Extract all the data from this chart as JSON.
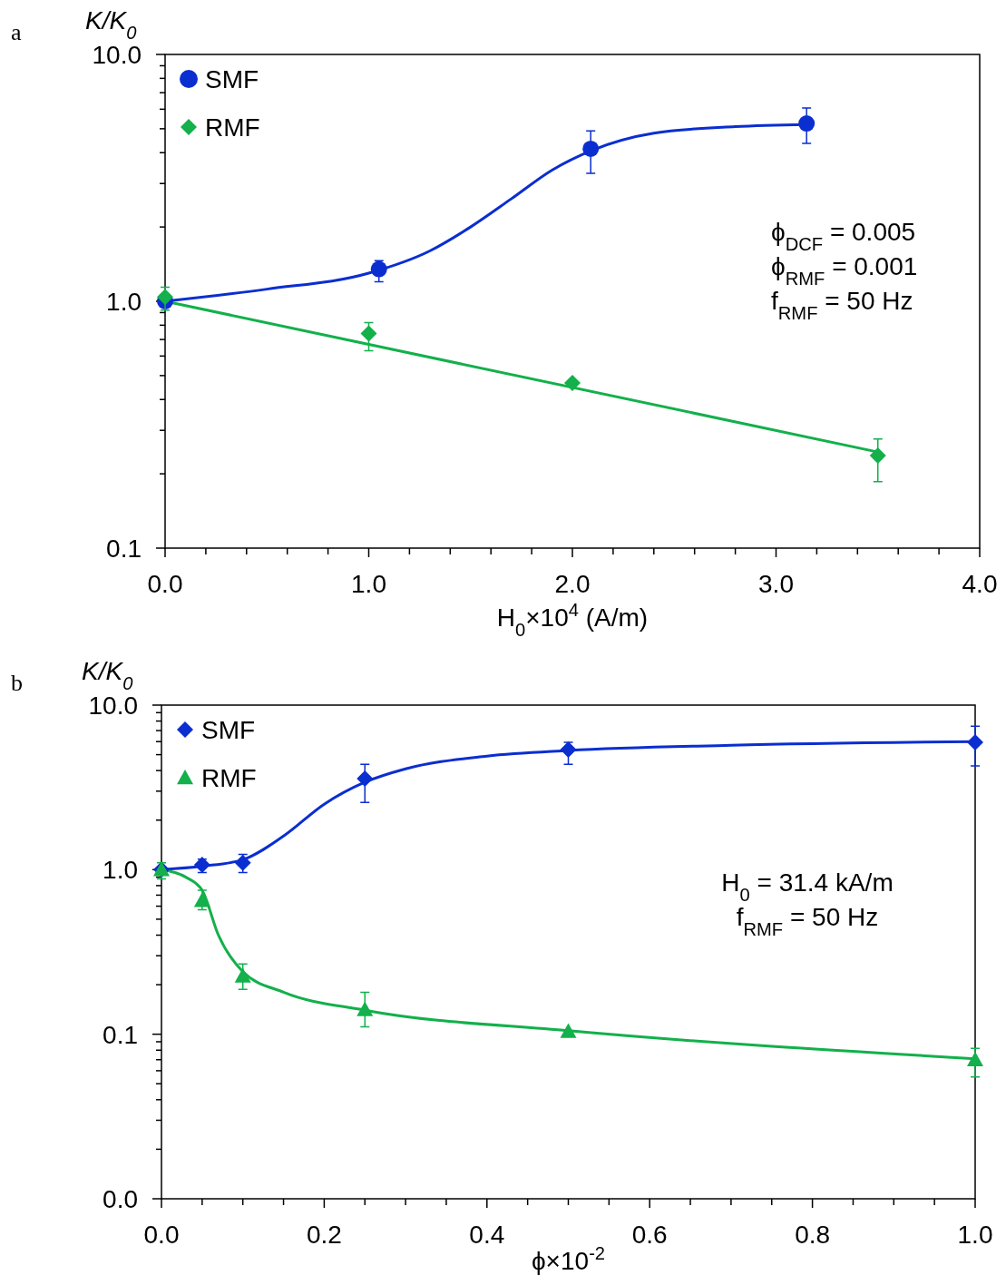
{
  "chart_data": [
    {
      "type": "scatter",
      "ylabel": "K/K$_{0}$",
      "xlabel": "H$_{0}$×10$^{4}$ (A/m)",
      "log": "y",
      "legend": "top left",
      "grid": false,
      "annotations": [
        "a",
        "ϕ$_{DCF}$ = 0.005",
        "ϕ$_{RMF}$ = 0.001",
        "f$_{RMF}$ = 50 Hz"
      ],
      "xlim": [
        0,
        4
      ],
      "ylim": [
        0.1,
        10
      ],
      "xticks": [
        {
          "value": 0,
          "label": "0.0"
        },
        {
          "value": 0.2,
          "label": null
        },
        {
          "value": 0.4,
          "label": null
        },
        {
          "value": 0.6,
          "label": null
        },
        {
          "value": 0.8,
          "label": null
        },
        {
          "value": 1,
          "label": "1.0"
        },
        {
          "value": 1.2,
          "label": null
        },
        {
          "value": 1.4,
          "label": null
        },
        {
          "value": 1.6,
          "label": null
        },
        {
          "value": 1.8,
          "label": null
        },
        {
          "value": 2,
          "label": "2.0"
        },
        {
          "value": 2.2,
          "label": null
        },
        {
          "value": 2.4,
          "label": null
        },
        {
          "value": 2.6,
          "label": null
        },
        {
          "value": 2.8,
          "label": null
        },
        {
          "value": 3,
          "label": "3.0"
        },
        {
          "value": 3.2,
          "label": null
        },
        {
          "value": 3.4,
          "label": null
        },
        {
          "value": 3.6,
          "label": null
        },
        {
          "value": 3.8,
          "label": null
        },
        {
          "value": 4,
          "label": "4.0"
        }
      ],
      "yticks": [
        0.1,
        {
          "value": 0.2,
          "label": null
        },
        {
          "value": 0.3,
          "label": null
        },
        {
          "value": 0.4,
          "label": null
        },
        {
          "value": 0.5,
          "label": null
        },
        {
          "value": 0.6,
          "label": null
        },
        {
          "value": 0.7,
          "label": null
        },
        {
          "value": 0.8,
          "label": null
        },
        {
          "value": 0.9,
          "label": null
        },
        {
          "value": 1,
          "label": "1.0"
        },
        {
          "value": 2,
          "label": null
        },
        {
          "value": 3,
          "label": null
        },
        {
          "value": 4,
          "label": null
        },
        {
          "value": 5,
          "label": null
        },
        {
          "value": 6,
          "label": null
        },
        {
          "value": 7,
          "label": null
        },
        {
          "value": 8,
          "label": null
        },
        {
          "value": 9,
          "label": null
        },
        {
          "value": 10,
          "label": "10.0"
        }
      ],
      "series": [
        {
          "name": "SMF",
          "marker": "circle",
          "color": "#0a2ed0",
          "x": [
            0,
            1.05,
            2.09,
            3.15
          ],
          "values": [
            1.0,
            1.35,
            4.15,
            5.25
          ],
          "errors": [
            null,
            [
              1.2,
              1.46
            ],
            [
              3.3,
              4.9
            ],
            [
              4.36,
              6.07
            ]
          ]
        },
        {
          "name": "RMF",
          "marker": "diamond",
          "color": "#13b04b",
          "x": [
            0,
            1.0,
            2.0,
            3.5
          ],
          "values": [
            1.04,
            0.74,
            0.467,
            0.237
          ],
          "errors": [
            [
              0.92,
              1.14
            ],
            [
              0.63,
              0.82
            ],
            null,
            [
              0.186,
              0.277
            ]
          ]
        },
        {
          "type": "line",
          "marker": "none",
          "color": "#0a2ed0",
          "x": [
            0,
            0.5,
            1.0,
            1.3,
            1.5,
            1.7,
            1.9,
            2.1,
            2.4,
            2.8,
            3.15
          ],
          "values": [
            1.0,
            1.12,
            1.3,
            1.6,
            2.0,
            2.6,
            3.4,
            4.1,
            4.8,
            5.1,
            5.2
          ]
        },
        {
          "type": "line",
          "marker": "none",
          "color": "#13b04b",
          "x": [
            0,
            3.5
          ],
          "values": [
            1.0,
            0.245
          ]
        }
      ]
    },
    {
      "type": "scatter",
      "ylabel": "K/K$_{0}$",
      "xlabel": "ϕ×10$^{-2}$",
      "log": "y",
      "legend": "top left",
      "grid": false,
      "annotations": [
        "b",
        "H$_{0}$ = 31.4 kA/m",
        "f$_{RMF}$ = 50 Hz"
      ],
      "xlim": [
        0,
        1
      ],
      "ylim": [
        0.01,
        10
      ],
      "xticks": [
        {
          "value": 0,
          "label": "0.0"
        },
        {
          "value": 0.05,
          "label": null
        },
        {
          "value": 0.1,
          "label": null
        },
        {
          "value": 0.15,
          "label": null
        },
        {
          "value": 0.2,
          "label": "0.2"
        },
        {
          "value": 0.25,
          "label": null
        },
        {
          "value": 0.3,
          "label": null
        },
        {
          "value": 0.35,
          "label": null
        },
        {
          "value": 0.4,
          "label": "0.4"
        },
        {
          "value": 0.45,
          "label": null
        },
        {
          "value": 0.5,
          "label": null
        },
        {
          "value": 0.55,
          "label": null
        },
        {
          "value": 0.6,
          "label": "0.6"
        },
        {
          "value": 0.65,
          "label": null
        },
        {
          "value": 0.7,
          "label": null
        },
        {
          "value": 0.75,
          "label": null
        },
        {
          "value": 0.8,
          "label": "0.8"
        },
        {
          "value": 0.85,
          "label": null
        },
        {
          "value": 0.9,
          "label": null
        },
        {
          "value": 0.95,
          "label": null
        },
        {
          "value": 1,
          "label": "1.0"
        }
      ],
      "yticks": [
        {
          "value": 0.01,
          "label": "0.0"
        },
        {
          "value": 0.02,
          "label": null
        },
        {
          "value": 0.03,
          "label": null
        },
        {
          "value": 0.04,
          "label": null
        },
        {
          "value": 0.05,
          "label": null
        },
        {
          "value": 0.06,
          "label": null
        },
        {
          "value": 0.07,
          "label": null
        },
        {
          "value": 0.08,
          "label": null
        },
        {
          "value": 0.09,
          "label": null
        },
        0.1,
        {
          "value": 0.2,
          "label": null
        },
        {
          "value": 0.3,
          "label": null
        },
        {
          "value": 0.4,
          "label": null
        },
        {
          "value": 0.5,
          "label": null
        },
        {
          "value": 0.6,
          "label": null
        },
        {
          "value": 0.7,
          "label": null
        },
        {
          "value": 0.8,
          "label": null
        },
        {
          "value": 0.9,
          "label": null
        },
        {
          "value": 1,
          "label": "1.0"
        },
        {
          "value": 2,
          "label": null
        },
        {
          "value": 3,
          "label": null
        },
        {
          "value": 4,
          "label": null
        },
        {
          "value": 5,
          "label": null
        },
        {
          "value": 6,
          "label": null
        },
        {
          "value": 7,
          "label": null
        },
        {
          "value": 8,
          "label": null
        },
        {
          "value": 9,
          "label": null
        },
        {
          "value": 10,
          "label": "10.0"
        }
      ],
      "series": [
        {
          "name": "SMF",
          "marker": "diamond",
          "color": "#0a2ed0",
          "x": [
            0,
            0.05,
            0.1,
            0.25,
            0.5,
            1.0
          ],
          "values": [
            1.0,
            1.07,
            1.1,
            3.57,
            5.36,
            5.94
          ],
          "errors": [
            null,
            [
              0.96,
              1.16
            ],
            [
              0.96,
              1.24
            ],
            [
              2.56,
              4.37
            ],
            [
              4.37,
              5.94
            ],
            [
              4.27,
              7.45
            ]
          ]
        },
        {
          "name": "RMF",
          "marker": "triangle",
          "color": "#13b04b",
          "x": [
            0,
            0.05,
            0.1,
            0.25,
            0.5,
            1.0
          ],
          "values": [
            1.0,
            0.65,
            0.226,
            0.141,
            0.104,
            0.07
          ],
          "errors": [
            [
              0.88,
              1.1
            ],
            [
              0.57,
              0.75
            ],
            [
              0.187,
              0.267
            ],
            [
              0.111,
              0.18
            ],
            null,
            [
              0.055,
              0.082
            ]
          ]
        },
        {
          "type": "line",
          "marker": "none",
          "color": "#0a2ed0",
          "x": [
            0,
            0.05,
            0.1,
            0.15,
            0.2,
            0.25,
            0.3,
            0.4,
            0.5,
            0.7,
            1.0
          ],
          "values": [
            1.0,
            1.05,
            1.15,
            1.6,
            2.5,
            3.4,
            4.1,
            4.9,
            5.3,
            5.7,
            6.0
          ]
        },
        {
          "type": "line",
          "marker": "none",
          "color": "#13b04b",
          "x": [
            0,
            0.03,
            0.05,
            0.07,
            0.1,
            0.15,
            0.25,
            0.5,
            1.0
          ],
          "values": [
            1.0,
            0.9,
            0.75,
            0.4,
            0.24,
            0.18,
            0.14,
            0.105,
            0.071
          ]
        }
      ]
    }
  ]
}
